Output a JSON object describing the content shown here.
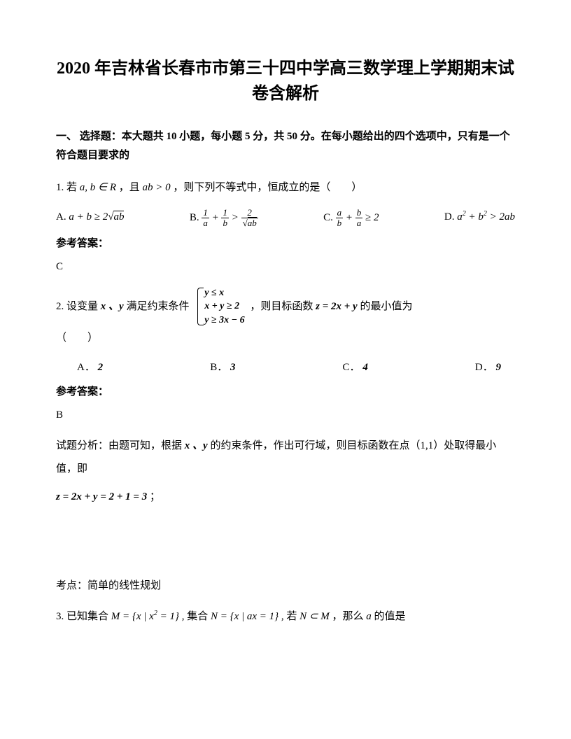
{
  "title": "2020 年吉林省长春市市第三十四中学高三数学理上学期期末试卷含解析",
  "section": "一、 选择题：本大题共 10 小题，每小题 5 分，共 50 分。在每小题给出的四个选项中，只有是一个符合题目要求的",
  "q1": {
    "prefix": "1. 若",
    "cond1": "a, b ∈ R",
    "mid1": "，且",
    "cond2": "ab > 0",
    "tail": "，则下列不等式中，恒成立的是（　　）",
    "optA_label": "A.",
    "optB_label": "B.",
    "optC_label": "C.",
    "optD_label": "D.",
    "optD_text": "a² + b² > 2ab",
    "answer_label": "参考答案：",
    "answer": "C"
  },
  "q2": {
    "prefix": "2. 设变量",
    "vars": "x 、y",
    "mid": "满足约束条件",
    "c1": "y ≤ x",
    "c2": "x + y ≥ 2",
    "c3": "y ≥ 3x − 6",
    "mid2": "，则目标函数",
    "func": "z = 2x + y",
    "tail": "的最小值为",
    "paren": "（　　）",
    "optA_label": "A．",
    "optA": "2",
    "optB_label": "B．",
    "optB": "3",
    "optC_label": "C．",
    "optC": "4",
    "optD_label": "D．",
    "optD": "9",
    "answer_label": "参考答案：",
    "answer": "B",
    "analysis1_pre": "试题分析：由题可知，根据",
    "analysis1_vars": "x 、y",
    "analysis1_post": "的约束条件，作出可行域，则目标函数在点（1,1）处取得最小值，即",
    "result": "z = 2x + y = 2 + 1 = 3",
    "result_tail": "；",
    "topic": "考点：简单的线性规划"
  },
  "q3": {
    "prefix": "3. 已知集合",
    "M": "M = {x | x² = 1}",
    "mid1": ", 集合",
    "N": "N = {x | ax = 1}",
    "mid2": ", 若",
    "subset": "N ⊂ M",
    "mid3": "，那么",
    "var": "a",
    "tail": "的值是"
  },
  "colors": {
    "text": "#000000",
    "background": "#ffffff"
  },
  "typography": {
    "title_fontsize": 24,
    "body_fontsize": 15,
    "font_family": "SimSun"
  }
}
